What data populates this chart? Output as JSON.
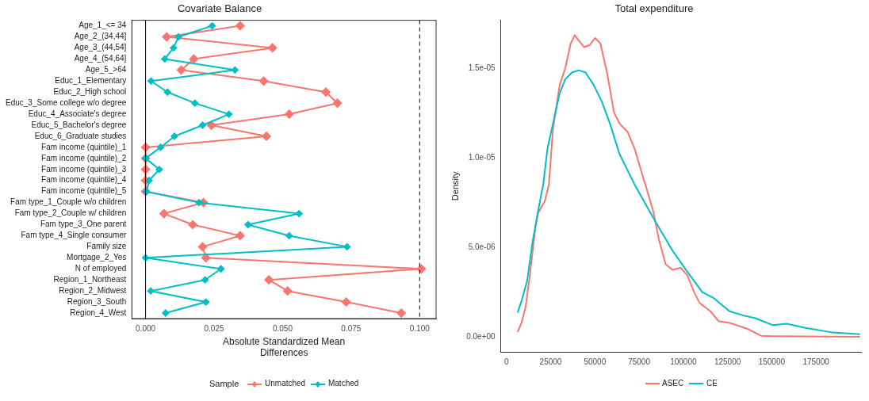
{
  "chart_data": [
    {
      "type": "line",
      "orientation": "horizontal",
      "title": "Covariate Balance",
      "xlabel": "Absolute Standardized Mean Differences",
      "legend_title": "Sample",
      "legend": "bottom",
      "marker": "diamond",
      "categories": [
        "Age_1_<= 34",
        "Age_2_(34,44]",
        "Age_3_(44,54]",
        "Age_4_(54,64]",
        "Age_5_>64",
        "Educ_1_Elementary",
        "Educ_2_High school",
        "Educ_3_Some college w/o degree",
        "Educ_4_Associate's degree",
        "Educ_5_Bachelor's degree",
        "Educ_6_Graduate studies",
        "Fam income (quintile)_1",
        "Fam income (quintile)_2",
        "Fam income (quintile)_3",
        "Fam income (quintile)_4",
        "Fam income (quintile)_5",
        "Fam type_1_Couple w/o children",
        "Fam type_2_Couple w/ children",
        "Fam type_3_One parent",
        "Fam type_4_Single consumer",
        "Family size",
        "Mortgage_2_Yes",
        "N of employed",
        "Region_1_Northeast",
        "Region_2_Midwest",
        "Region_3_South",
        "Region_4_West"
      ],
      "series": [
        {
          "name": "Unmatched",
          "color": "#f8766d",
          "values": [
            0.0345,
            0.0077,
            0.0463,
            0.0176,
            0.013,
            0.0431,
            0.0658,
            0.07,
            0.0524,
            0.024,
            0.0441,
            0,
            0,
            0,
            0,
            0,
            0.0211,
            0.0067,
            0.0172,
            0.0345,
            0.0208,
            0.022,
            0.1006,
            0.045,
            0.0518,
            0.0732,
            0.0933
          ]
        },
        {
          "name": "Matched",
          "color": "#00bfc4",
          "values": [
            0.0243,
            0.012,
            0.0102,
            0.007,
            0.0326,
            0.002,
            0.008,
            0.018,
            0.0304,
            0.0208,
            0.0105,
            0.0055,
            0,
            0.005,
            0.0013,
            0.0003,
            0.0195,
            0.056,
            0.0374,
            0.0524,
            0.0735,
            0,
            0.0275,
            0.0217,
            0.0019,
            0.022,
            0.0073
          ]
        }
      ],
      "xlim": [
        -0.005,
        0.106
      ],
      "xticks": [
        {
          "value": 0,
          "label": "0.000"
        },
        {
          "value": 0.025,
          "label": "0.025"
        },
        {
          "value": 0.05,
          "label": "0.050"
        },
        {
          "value": 0.075,
          "label": "0.075"
        },
        {
          "value": 0.1,
          "label": "0.100"
        }
      ],
      "ref_lines": [
        {
          "axis": "x",
          "value": 0,
          "color": "#000000",
          "line_style": "solid"
        },
        {
          "axis": "x",
          "value": 0.1,
          "color": "#000000",
          "line_style": "dashed"
        }
      ]
    },
    {
      "type": "line",
      "title": "Total expenditure",
      "ylabel": "Density",
      "legend": "bottom",
      "marker": "none",
      "series": [
        {
          "name": "ASEC",
          "color": "#f8766d",
          "x": [
            6300,
            8600,
            10900,
            13200,
            16300,
            17800,
            21700,
            24000,
            26300,
            30100,
            33200,
            36300,
            38600,
            40900,
            43900,
            47000,
            50100,
            53100,
            57000,
            60800,
            63900,
            68500,
            72400,
            77000,
            78500,
            83100,
            86200,
            90000,
            93900,
            98500,
            102300,
            106100,
            109200,
            115300,
            119900,
            126100,
            136900,
            143800,
            150700,
            199900
          ],
          "values": [
            2.8e-07,
            8.1e-07,
            1.74e-06,
            3.44e-06,
            6.06e-06,
            6.91e-06,
            7.6e-06,
            8.53e-06,
            1.162e-05,
            1.409e-05,
            1.501e-05,
            1.64e-05,
            1.687e-05,
            1.656e-05,
            1.62e-05,
            1.632e-05,
            1.671e-05,
            1.64e-05,
            1.47e-05,
            1.255e-05,
            1.193e-05,
            1.146e-05,
            1.054e-05,
            9e-06,
            8.53e-06,
            6.99e-06,
            5.44e-06,
            4.06e-06,
            3.75e-06,
            3.87e-06,
            3.44e-06,
            2.51e-06,
            1.9e-06,
            1.44e-06,
            8.9e-07,
            7.9e-07,
            4.3e-07,
            7e-08,
            5e-08,
            1e-08
          ]
        },
        {
          "name": "CE",
          "color": "#00bfc4",
          "x": [
            6300,
            8600,
            11700,
            14700,
            17800,
            20900,
            23200,
            26300,
            30100,
            33200,
            37000,
            40900,
            44700,
            49300,
            53900,
            58500,
            63900,
            69300,
            72400,
            78500,
            84700,
            93900,
            101500,
            110700,
            116800,
            126100,
            135300,
            140700,
            150700,
            158400,
            169100,
            184500,
            199900
          ],
          "values": [
            1.36e-06,
            2.05e-06,
            3.13e-06,
            5.29e-06,
            6.99e-06,
            8.6e-06,
            1.054e-05,
            1.193e-05,
            1.363e-05,
            1.44e-05,
            1.478e-05,
            1.491e-05,
            1.478e-05,
            1.409e-05,
            1.316e-05,
            1.193e-05,
            1.023e-05,
            9.15e-06,
            8.53e-06,
            7.45e-06,
            6.37e-06,
            4.83e-06,
            3.75e-06,
            2.51e-06,
            2.2e-06,
            1.44e-06,
            1.17e-06,
            1.05e-06,
            6.6e-07,
            7.4e-07,
            5.1e-07,
            2.5e-07,
            1.5e-07
          ]
        }
      ],
      "xlim": [
        -3200,
        200500
      ],
      "xticks": [
        0,
        25000,
        50000,
        75000,
        100000,
        125000,
        150000,
        175000
      ],
      "ylim": [
        -8.3e-07,
        1.77e-05
      ],
      "yticks": [
        {
          "value": 0,
          "label": "0.0e+00"
        },
        {
          "value": 5e-06,
          "label": "5.0e-06"
        },
        {
          "value": 1e-05,
          "label": "1.0e-05"
        },
        {
          "value": 1.5e-05,
          "label": "1.5e-05"
        }
      ]
    }
  ]
}
